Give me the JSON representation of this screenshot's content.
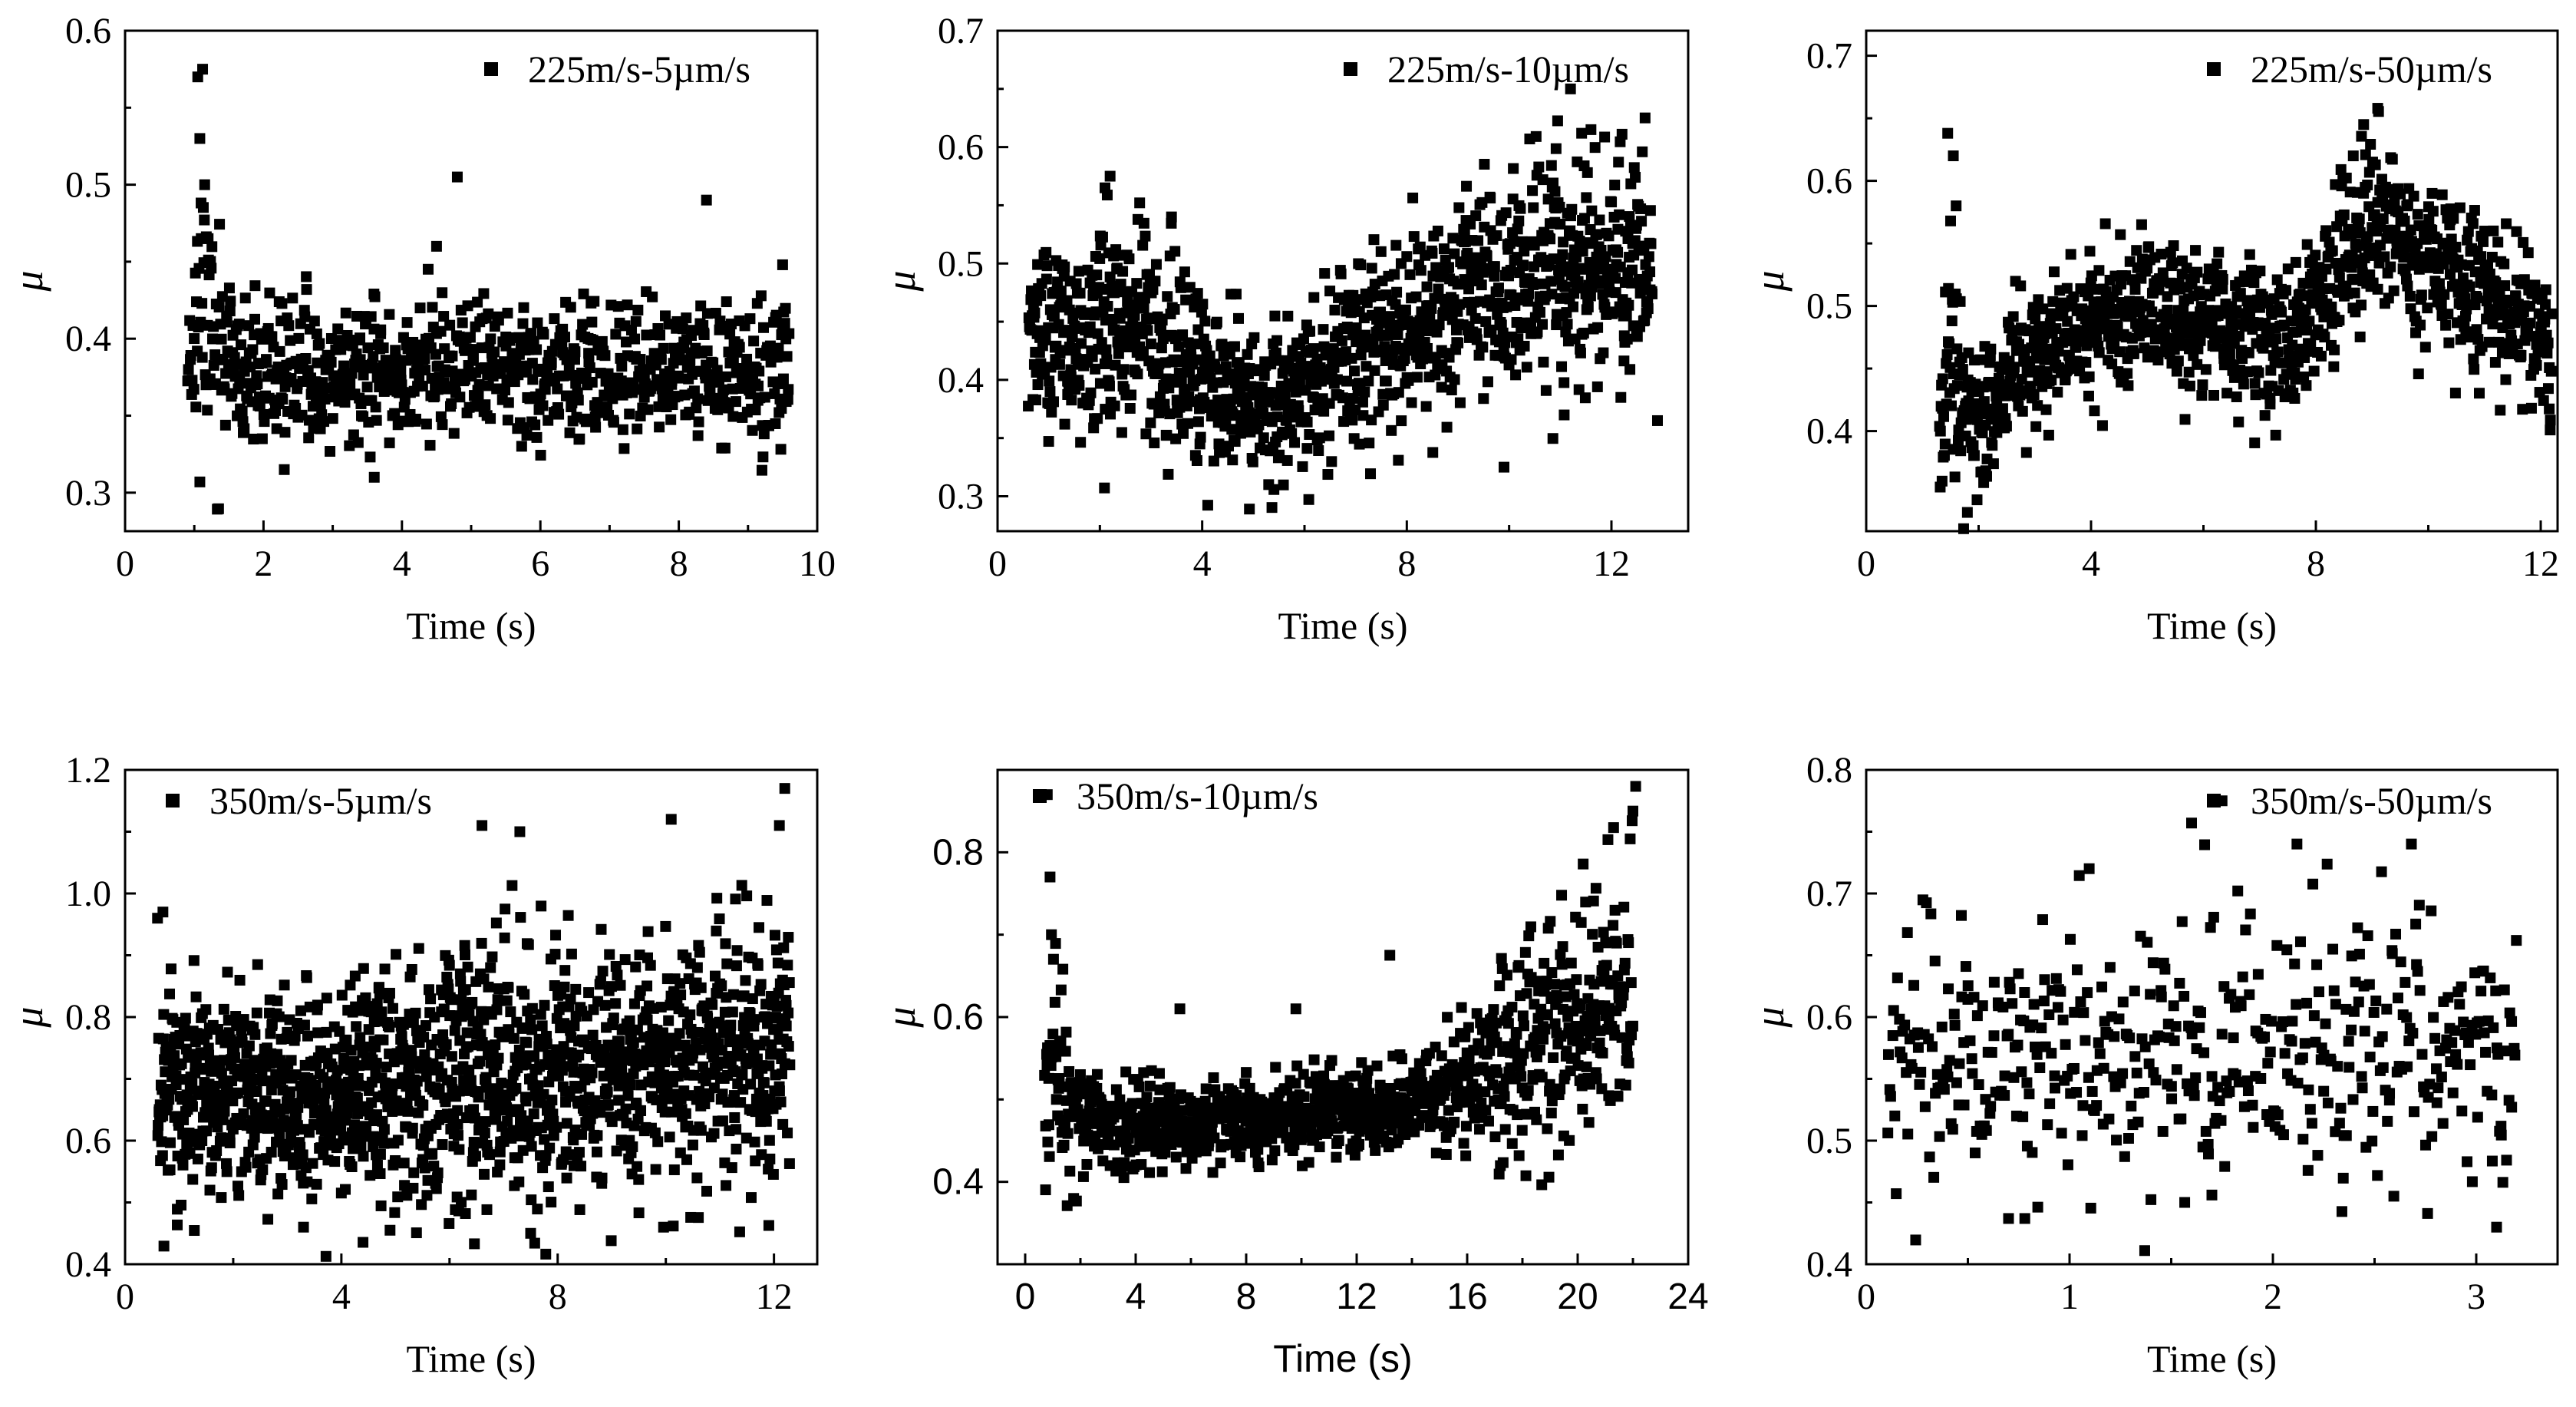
{
  "chart_data": [
    {
      "type": "scatter",
      "legend": "225m/s-5µm/s",
      "xlabel": "Time (s)",
      "ylabel": "μ",
      "xlim": [
        0,
        10
      ],
      "ylim": [
        0.275,
        0.6
      ],
      "xticks": [
        "0",
        "2",
        "4",
        "6",
        "8",
        "10"
      ],
      "yticks": [
        "0.3",
        "0.4",
        "0.5",
        "0.6"
      ],
      "n_points": 900,
      "seed": 11,
      "profile": [
        [
          0.9,
          0.39,
          0.02
        ],
        [
          1.1,
          0.42,
          0.05
        ],
        [
          1.6,
          0.375,
          0.022
        ],
        [
          5,
          0.38,
          0.022
        ],
        [
          9.6,
          0.38,
          0.022
        ]
      ],
      "outliers": [
        [
          1.05,
          0.57
        ],
        [
          1.12,
          0.575
        ],
        [
          1.08,
          0.53
        ],
        [
          1.15,
          0.5
        ],
        [
          1.1,
          0.465
        ],
        [
          1.2,
          0.465
        ],
        [
          4.8,
          0.505
        ],
        [
          8.4,
          0.49
        ],
        [
          4.5,
          0.46
        ],
        [
          9.5,
          0.448
        ],
        [
          3.6,
          0.31
        ],
        [
          2.3,
          0.315
        ]
      ]
    },
    {
      "type": "scatter",
      "legend": "225m/s-10µm/s",
      "xlabel": "Time (s)",
      "ylabel": "μ",
      "xlim": [
        0,
        13.5
      ],
      "ylim": [
        0.27,
        0.7
      ],
      "xticks": [
        "0",
        "4",
        "8",
        "12"
      ],
      "yticks": [
        "0.3",
        "0.4",
        "0.5",
        "0.6",
        "0.7"
      ],
      "n_points": 1300,
      "seed": 23,
      "profile": [
        [
          0.6,
          0.44,
          0.04
        ],
        [
          3,
          0.43,
          0.045
        ],
        [
          5.2,
          0.37,
          0.03
        ],
        [
          7,
          0.42,
          0.035
        ],
        [
          9,
          0.465,
          0.04
        ],
        [
          11,
          0.5,
          0.05
        ],
        [
          12.8,
          0.5,
          0.05
        ]
      ],
      "outliers": [
        [
          2.2,
          0.575
        ],
        [
          2.1,
          0.565
        ],
        [
          11.2,
          0.65
        ],
        [
          11.6,
          0.615
        ],
        [
          9.9,
          0.325
        ],
        [
          5.3,
          0.31
        ],
        [
          12.9,
          0.365
        ],
        [
          3.4,
          0.54
        ]
      ]
    },
    {
      "type": "scatter",
      "legend": "225m/s-50µm/s",
      "xlabel": "Time (s)",
      "ylabel": "μ",
      "xlim": [
        0,
        12.3
      ],
      "ylim": [
        0.32,
        0.72
      ],
      "xticks": [
        "0",
        "4",
        "8",
        "12"
      ],
      "yticks": [
        "0.4",
        "0.5",
        "0.6",
        "0.7"
      ],
      "n_points": 1150,
      "seed": 37,
      "profile": [
        [
          1.3,
          0.4,
          0.03
        ],
        [
          1.5,
          0.46,
          0.06
        ],
        [
          1.8,
          0.41,
          0.03
        ],
        [
          3,
          0.46,
          0.025
        ],
        [
          5,
          0.5,
          0.028
        ],
        [
          7.5,
          0.47,
          0.03
        ],
        [
          9,
          0.57,
          0.035
        ],
        [
          10.5,
          0.52,
          0.03
        ],
        [
          12.2,
          0.47,
          0.03
        ]
      ],
      "outliers": [
        [
          1.45,
          0.638
        ],
        [
          1.55,
          0.62
        ],
        [
          1.6,
          0.58
        ],
        [
          1.35,
          0.36
        ],
        [
          1.8,
          0.335
        ],
        [
          9.1,
          0.658
        ],
        [
          8.85,
          0.645
        ],
        [
          4.9,
          0.565
        ]
      ]
    },
    {
      "type": "scatter",
      "legend": "350m/s-5µm/s",
      "xlabel": "Time (s)",
      "ylabel": "μ",
      "xlim": [
        0,
        12.8
      ],
      "ylim": [
        0.4,
        1.2
      ],
      "xticks": [
        "0",
        "4",
        "8",
        "12"
      ],
      "yticks": [
        "0.4",
        "0.6",
        "0.8",
        "1.0",
        "1.2"
      ],
      "n_points": 1600,
      "seed": 41,
      "profile": [
        [
          0.6,
          0.67,
          0.08
        ],
        [
          6,
          0.7,
          0.1
        ],
        [
          12.3,
          0.74,
          0.11
        ]
      ],
      "outliers": [
        [
          12.2,
          1.17
        ],
        [
          12.1,
          1.11
        ],
        [
          10.1,
          1.12
        ],
        [
          6.6,
          1.11
        ],
        [
          7.3,
          1.1
        ],
        [
          0.6,
          0.96
        ],
        [
          0.7,
          0.97
        ],
        [
          7.5,
          0.45
        ],
        [
          4.9,
          0.455
        ],
        [
          3.3,
          0.46
        ]
      ]
    },
    {
      "type": "scatter",
      "legend": "350m/s-10µm/s",
      "xlabel": "Time (s)",
      "ylabel": "μ",
      "xlim": [
        -1,
        24
      ],
      "ylim": [
        0.3,
        0.9
      ],
      "xticks": [
        "0",
        "4",
        "8",
        "12",
        "16",
        "20",
        "24"
      ],
      "yticks": [
        "0.4",
        "0.6",
        "0.8"
      ],
      "n_points": 1100,
      "seed": 53,
      "profile": [
        [
          0.7,
          0.5,
          0.05
        ],
        [
          1.1,
          0.54,
          0.07
        ],
        [
          2,
          0.47,
          0.03
        ],
        [
          6,
          0.47,
          0.025
        ],
        [
          10,
          0.48,
          0.025
        ],
        [
          15,
          0.5,
          0.03
        ],
        [
          17.5,
          0.56,
          0.06
        ],
        [
          20,
          0.6,
          0.08
        ],
        [
          22,
          0.62,
          0.09
        ]
      ],
      "outliers": [
        [
          0.8,
          0.87
        ],
        [
          0.9,
          0.77
        ],
        [
          0.95,
          0.7
        ],
        [
          22.1,
          0.88
        ],
        [
          22,
          0.85
        ],
        [
          21.3,
          0.83
        ],
        [
          13.2,
          0.675
        ],
        [
          9.8,
          0.61
        ],
        [
          5.6,
          0.61
        ]
      ]
    },
    {
      "type": "scatter",
      "legend": "350m/s-50µm/s",
      "xlabel": "Time (s)",
      "ylabel": "μ",
      "xlim": [
        0,
        3.4
      ],
      "ylim": [
        0.4,
        0.8
      ],
      "xticks": [
        "0",
        "1",
        "2",
        "3"
      ],
      "yticks": [
        "0.4",
        "0.5",
        "0.6",
        "0.7",
        "0.8"
      ],
      "n_points": 480,
      "seed": 67,
      "profile": [
        [
          0.1,
          0.565,
          0.05
        ],
        [
          1.7,
          0.575,
          0.055
        ],
        [
          3.2,
          0.575,
          0.055
        ]
      ],
      "outliers": [
        [
          1.6,
          0.757
        ],
        [
          1.75,
          0.775
        ],
        [
          3.1,
          0.43
        ],
        [
          0.7,
          0.437
        ],
        [
          0.78,
          0.437
        ],
        [
          1.7,
          0.456
        ]
      ]
    }
  ]
}
